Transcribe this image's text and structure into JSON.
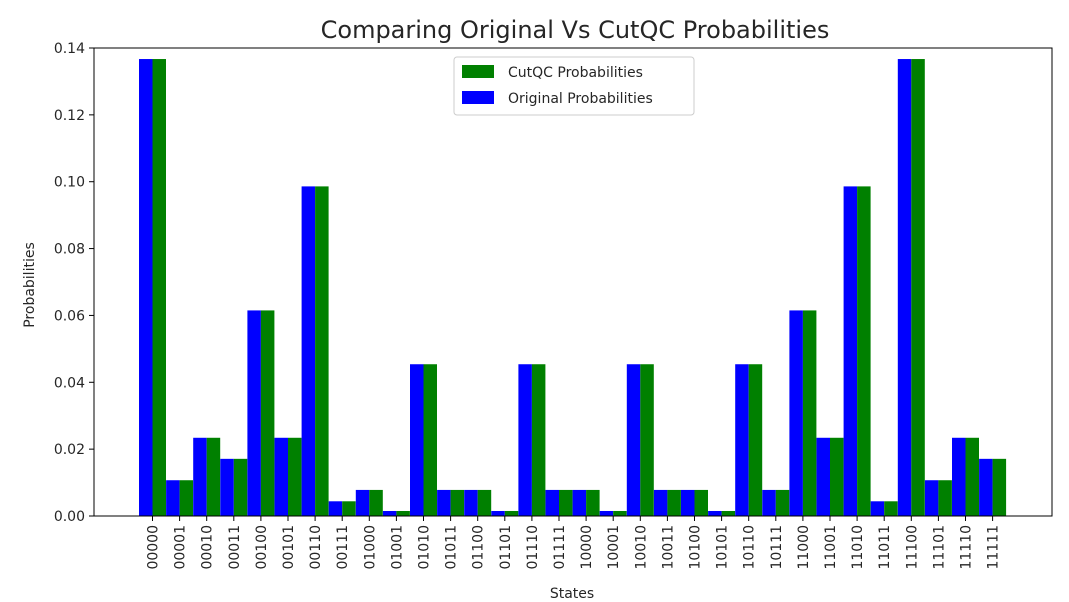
{
  "chart_data": {
    "type": "bar",
    "title": "Comparing Original Vs CutQC Probabilities",
    "xlabel": "States",
    "ylabel": "Probabilities",
    "ylim": [
      0,
      0.14
    ],
    "yticks": [
      "0.00",
      "0.02",
      "0.04",
      "0.06",
      "0.08",
      "0.10",
      "0.12",
      "0.14"
    ],
    "grid": false,
    "legend_position": "top-center",
    "categories": [
      "00000",
      "00001",
      "00010",
      "00011",
      "00100",
      "00101",
      "00110",
      "00111",
      "01000",
      "01001",
      "01010",
      "01011",
      "01100",
      "01101",
      "01110",
      "01111",
      "10000",
      "10001",
      "10010",
      "10011",
      "10100",
      "10101",
      "10110",
      "10111",
      "11000",
      "11001",
      "11010",
      "11011",
      "11100",
      "11101",
      "11110",
      "11111"
    ],
    "series": [
      {
        "name": "Original Probabilities",
        "color": "#0000ff",
        "values": [
          0.1367,
          0.0107,
          0.0234,
          0.0171,
          0.0615,
          0.0234,
          0.0986,
          0.0044,
          0.0078,
          0.0015,
          0.0454,
          0.0078,
          0.0078,
          0.0015,
          0.0454,
          0.0078,
          0.0078,
          0.0015,
          0.0454,
          0.0078,
          0.0078,
          0.0015,
          0.0454,
          0.0078,
          0.0615,
          0.0234,
          0.0986,
          0.0044,
          0.1367,
          0.0107,
          0.0234,
          0.0171
        ]
      },
      {
        "name": "CutQC Probabilities",
        "color": "#008000",
        "values": [
          0.1367,
          0.0107,
          0.0234,
          0.0171,
          0.0615,
          0.0234,
          0.0986,
          0.0044,
          0.0078,
          0.0015,
          0.0454,
          0.0078,
          0.0078,
          0.0015,
          0.0454,
          0.0078,
          0.0078,
          0.0015,
          0.0454,
          0.0078,
          0.0078,
          0.0015,
          0.0454,
          0.0078,
          0.0615,
          0.0234,
          0.0986,
          0.0044,
          0.1367,
          0.0107,
          0.0234,
          0.0171
        ]
      }
    ],
    "legend_order": [
      "CutQC Probabilities",
      "Original Probabilities"
    ]
  }
}
